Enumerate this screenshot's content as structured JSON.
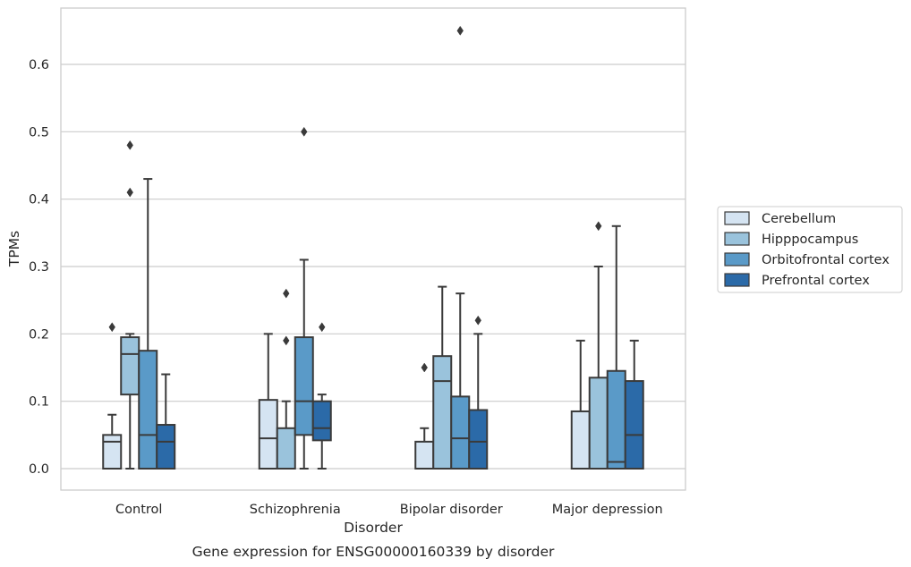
{
  "caption": "Gene expression for ENSG00000160339 by disorder",
  "chart_data": {
    "type": "box",
    "xlabel": "Disorder",
    "ylabel": "TPMs",
    "ylim": [
      -0.032,
      0.685
    ],
    "yticks": [
      "0.0",
      "0.1",
      "0.2",
      "0.3",
      "0.4",
      "0.5",
      "0.6"
    ],
    "grid": true,
    "legend_position": "right",
    "categories": [
      "Control",
      "Schizophrenia",
      "Bipolar disorder",
      "Major depression"
    ],
    "series": [
      {
        "name": "Cerebellum",
        "color": "#d5e4f2",
        "boxes": [
          {
            "q1": 0.0,
            "median": 0.04,
            "q3": 0.05,
            "whisker_low": 0.0,
            "whisker_high": 0.08,
            "outliers": [
              0.21
            ]
          },
          {
            "q1": 0.0,
            "median": 0.045,
            "q3": 0.102,
            "whisker_low": 0.0,
            "whisker_high": 0.2,
            "outliers": []
          },
          {
            "q1": 0.0,
            "median": 0.0,
            "q3": 0.04,
            "whisker_low": 0.0,
            "whisker_high": 0.06,
            "outliers": [
              0.15
            ]
          },
          {
            "q1": 0.0,
            "median": 0.0,
            "q3": 0.085,
            "whisker_low": 0.0,
            "whisker_high": 0.19,
            "outliers": []
          }
        ]
      },
      {
        "name": "Hipppocampus",
        "color": "#9ac3dc",
        "boxes": [
          {
            "q1": 0.11,
            "median": 0.17,
            "q3": 0.195,
            "whisker_low": 0.0,
            "whisker_high": 0.2,
            "outliers": [
              0.41,
              0.48
            ]
          },
          {
            "q1": 0.0,
            "median": 0.0,
            "q3": 0.06,
            "whisker_low": 0.0,
            "whisker_high": 0.1,
            "outliers": [
              0.19,
              0.26
            ]
          },
          {
            "q1": 0.0,
            "median": 0.13,
            "q3": 0.167,
            "whisker_low": 0.0,
            "whisker_high": 0.27,
            "outliers": []
          },
          {
            "q1": 0.0,
            "median": 0.0,
            "q3": 0.135,
            "whisker_low": 0.0,
            "whisker_high": 0.3,
            "outliers": [
              0.36
            ]
          }
        ]
      },
      {
        "name": "Orbitofrontal cortex",
        "color": "#5a9ac8",
        "boxes": [
          {
            "q1": 0.0,
            "median": 0.05,
            "q3": 0.175,
            "whisker_low": 0.0,
            "whisker_high": 0.43,
            "outliers": []
          },
          {
            "q1": 0.05,
            "median": 0.1,
            "q3": 0.195,
            "whisker_low": 0.0,
            "whisker_high": 0.31,
            "outliers": [
              0.5
            ]
          },
          {
            "q1": 0.0,
            "median": 0.045,
            "q3": 0.107,
            "whisker_low": 0.0,
            "whisker_high": 0.26,
            "outliers": [
              0.65
            ]
          },
          {
            "q1": 0.0,
            "median": 0.01,
            "q3": 0.145,
            "whisker_low": 0.0,
            "whisker_high": 0.36,
            "outliers": []
          }
        ]
      },
      {
        "name": "Prefrontal cortex",
        "color": "#2b6aa8",
        "boxes": [
          {
            "q1": 0.0,
            "median": 0.04,
            "q3": 0.065,
            "whisker_low": 0.0,
            "whisker_high": 0.14,
            "outliers": []
          },
          {
            "q1": 0.042,
            "median": 0.06,
            "q3": 0.1,
            "whisker_low": 0.0,
            "whisker_high": 0.11,
            "outliers": [
              0.21
            ]
          },
          {
            "q1": 0.0,
            "median": 0.04,
            "q3": 0.087,
            "whisker_low": 0.0,
            "whisker_high": 0.2,
            "outliers": [
              0.22
            ]
          },
          {
            "q1": 0.0,
            "median": 0.05,
            "q3": 0.13,
            "whisker_low": 0.0,
            "whisker_high": 0.19,
            "outliers": []
          }
        ]
      }
    ]
  }
}
